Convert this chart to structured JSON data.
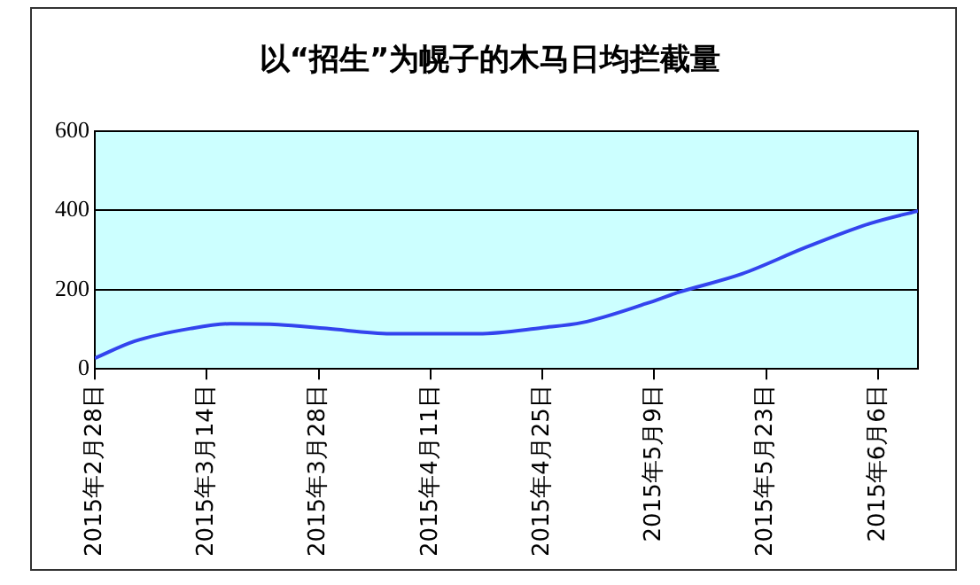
{
  "chart_data": {
    "type": "line",
    "title": "以“招生”为幌子的木马日均拦截量",
    "x": [
      "2015-02-28",
      "2015-03-05",
      "2015-03-12",
      "2015-03-17",
      "2015-03-23",
      "2015-03-29",
      "2015-04-06",
      "2015-04-17",
      "2015-04-25",
      "2015-04-30",
      "2015-05-08",
      "2015-05-12",
      "2015-05-20",
      "2015-05-28",
      "2015-06-05",
      "2015-06-11"
    ],
    "series": [
      {
        "color": "#3344ee",
        "values": [
          27,
          70,
          102,
          114,
          112,
          102,
          89,
          89,
          104,
          117,
          165,
          193,
          240,
          307,
          367,
          399
        ]
      }
    ],
    "xlim": [
      "2015-02-28",
      "2015-06-11"
    ],
    "xticks": [
      {
        "value": "2015-02-28",
        "label": "2015年2月28日"
      },
      {
        "value": "2015-03-14",
        "label": "2015年3月14日"
      },
      {
        "value": "2015-03-28",
        "label": "2015年3月28日"
      },
      {
        "value": "2015-04-11",
        "label": "2015年4月11日"
      },
      {
        "value": "2015-04-25",
        "label": "2015年4月25日"
      },
      {
        "value": "2015-05-09",
        "label": "2015年5月9日"
      },
      {
        "value": "2015-05-23",
        "label": "2015年5月23日"
      },
      {
        "value": "2015-06-06",
        "label": "2015年6月6日"
      }
    ],
    "ylim": [
      0,
      600
    ],
    "yticks": [
      0,
      200,
      400,
      600
    ],
    "grid": "y",
    "legend": false,
    "marker": "none",
    "line_style": "solid"
  }
}
